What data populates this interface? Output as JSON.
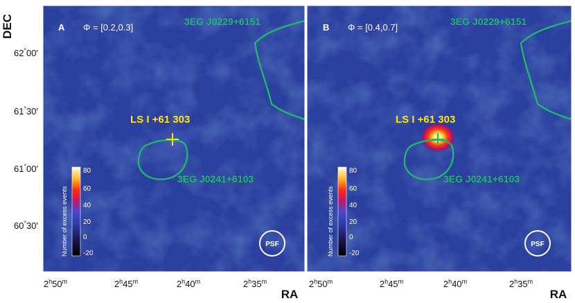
{
  "axes": {
    "y_label": "DEC",
    "x_label": "RA",
    "y_ticks": [
      {
        "deg": "62",
        "min": "00"
      },
      {
        "deg": "61",
        "min": "30"
      },
      {
        "deg": "61",
        "min": "00"
      },
      {
        "deg": "60",
        "min": "30"
      }
    ],
    "x_ticks": [
      {
        "h": "2",
        "m": "50"
      },
      {
        "h": "2",
        "m": "45"
      },
      {
        "h": "2",
        "m": "40"
      },
      {
        "h": "2",
        "m": "35"
      }
    ],
    "hour_unit": "h",
    "min_unit": "m",
    "deg_symbol": "°",
    "arcmin_symbol": "'"
  },
  "panels": [
    {
      "letter": "A",
      "phase": "Φ = [0.2,0.3]",
      "source_upper": "3EG J0229+6151",
      "source_lower": "3EG J0241+6103",
      "target": "LS I +61 303",
      "hotspot": false
    },
    {
      "letter": "B",
      "phase": "Φ = [0.4,0.7]",
      "source_upper": "3EG J0229+6151",
      "source_lower": "3EG J0241+6103",
      "target": "LS I +61 303",
      "hotspot": true
    }
  ],
  "colorbar": {
    "title": "Number of excess events",
    "ticks": [
      "80",
      "60",
      "40",
      "20",
      "0",
      "-20"
    ]
  },
  "psf_label": "PSF",
  "colors": {
    "map_background": "#2b3f9e",
    "contour": "#1db66a",
    "label_yellow": "#ffe600",
    "marker": "#ffe600"
  }
}
